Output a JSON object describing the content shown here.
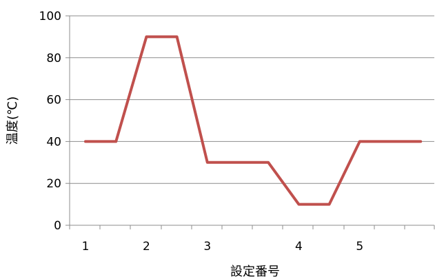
{
  "chart_data": {
    "type": "line",
    "ylabel": "温度(℃)",
    "xlabel": "設定番号",
    "ylim": [
      0,
      100
    ],
    "yticks": [
      0,
      20,
      40,
      60,
      80,
      100
    ],
    "grid": true,
    "x_labels": [
      {
        "x": 1,
        "label": "1"
      },
      {
        "x": 2,
        "label": "2"
      },
      {
        "x": 3,
        "label": "3"
      },
      {
        "x": 4.5,
        "label": "4"
      },
      {
        "x": 5.5,
        "label": "5"
      }
    ],
    "series": [
      {
        "color": "#c0504d",
        "points": [
          [
            1,
            40
          ],
          [
            1.5,
            40
          ],
          [
            2,
            90
          ],
          [
            2.5,
            90
          ],
          [
            3,
            30
          ],
          [
            4,
            30
          ],
          [
            4.5,
            10
          ],
          [
            5,
            10
          ],
          [
            5.5,
            40
          ],
          [
            6.5,
            40
          ]
        ]
      }
    ]
  }
}
